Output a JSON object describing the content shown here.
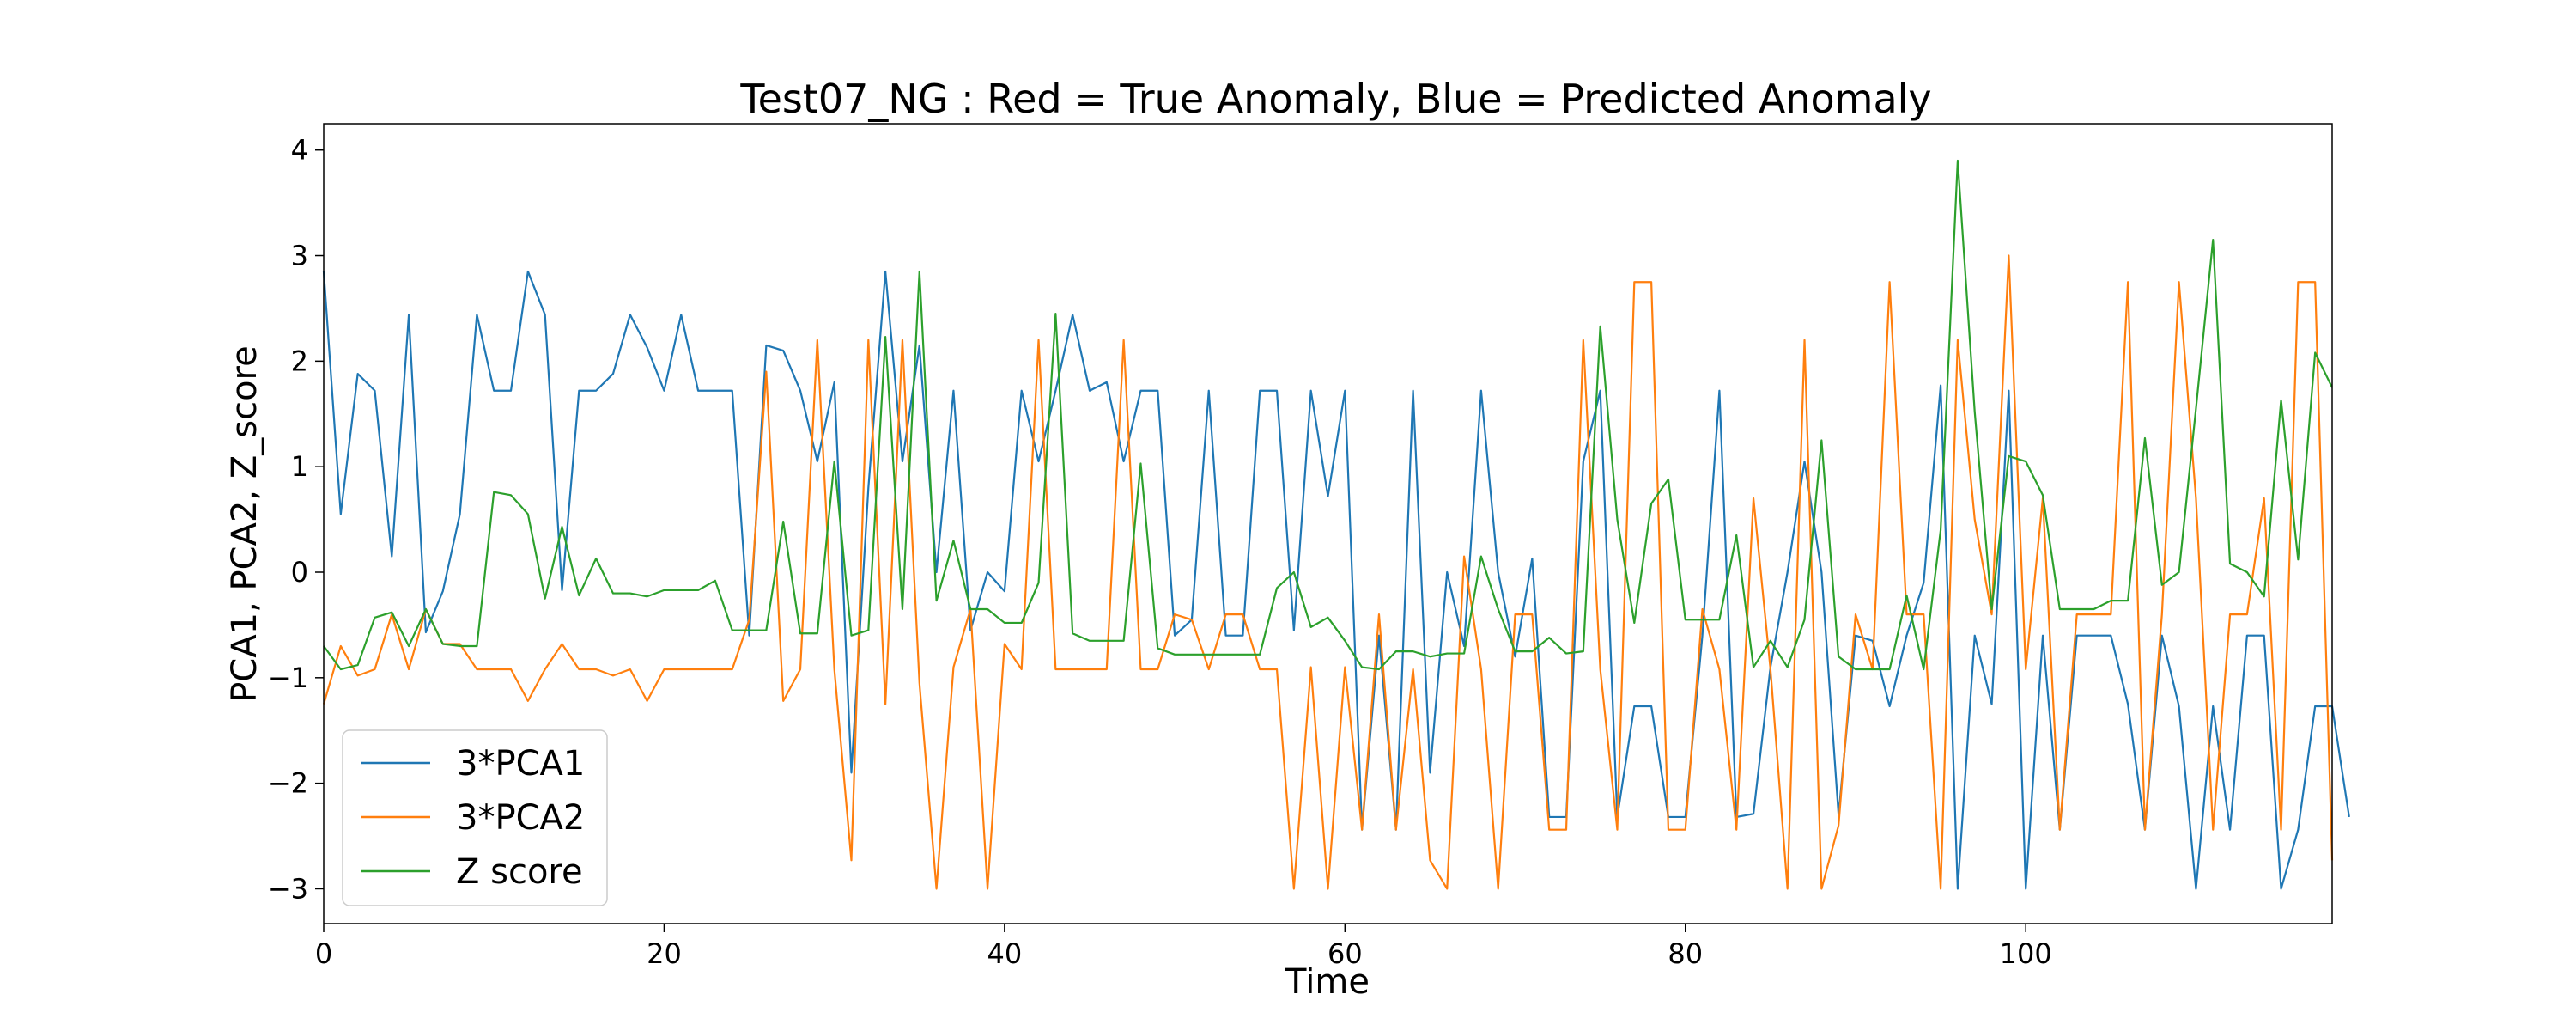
{
  "chart_data": {
    "type": "line",
    "title": "Test07_NG : Red = True Anomaly, Blue = Predicted Anomaly",
    "xlabel": "Time",
    "ylabel": "PCA1, PCA2, Z_score",
    "xlim": [
      0,
      118
    ],
    "ylim": [
      -3.33,
      4.25
    ],
    "xticks": [
      0,
      20,
      40,
      60,
      80,
      100
    ],
    "yticks": [
      -3,
      -2,
      -1,
      0,
      1,
      2,
      3,
      4
    ],
    "grid": false,
    "legend_position": "lower-left",
    "series": [
      {
        "name": "3*PCA1",
        "color": "#1f77b4",
        "values": [
          2.85,
          0.55,
          1.88,
          1.72,
          0.15,
          2.44,
          -0.57,
          -0.18,
          0.55,
          2.44,
          1.72,
          1.72,
          2.85,
          2.44,
          -0.17,
          1.72,
          1.72,
          1.88,
          2.44,
          2.13,
          1.72,
          2.44,
          1.72,
          1.72,
          1.72,
          -0.6,
          2.15,
          2.1,
          1.72,
          1.05,
          1.8,
          -1.9,
          0.8,
          2.85,
          1.05,
          2.15,
          0.0,
          1.72,
          -0.55,
          0.0,
          -0.18,
          1.72,
          1.05,
          1.72,
          2.44,
          1.72,
          1.8,
          1.05,
          1.72,
          1.72,
          -0.6,
          -0.45,
          1.72,
          -0.6,
          -0.6,
          1.72,
          1.72,
          -0.55,
          1.72,
          0.72,
          1.72,
          -2.44,
          -0.6,
          -2.44,
          1.72,
          -1.9,
          0.0,
          -0.7,
          1.72,
          0.0,
          -0.8,
          0.13,
          -2.32,
          -2.32,
          1.05,
          1.72,
          -2.32,
          -1.27,
          -1.27,
          -2.32,
          -2.32,
          -0.6,
          1.72,
          -2.32,
          -2.29,
          -0.9,
          0.0,
          1.05,
          0.0,
          -2.3,
          -0.6,
          -0.65,
          -1.27,
          -0.6,
          -0.1,
          1.77,
          -3.0,
          -0.6,
          -1.25,
          1.72,
          -3.0,
          -0.6,
          -2.44,
          -0.6,
          -0.6,
          -0.6,
          -1.25,
          -2.44,
          -0.6,
          -1.27,
          -3.0,
          -1.27,
          -2.44,
          -0.6,
          -0.6,
          -3.0,
          -2.44,
          -1.27,
          -1.27,
          -2.32
        ]
      },
      {
        "name": "3*PCA2",
        "color": "#ff7f0e",
        "values": [
          -1.25,
          -0.7,
          -0.98,
          -0.92,
          -0.4,
          -0.92,
          -0.35,
          -0.68,
          -0.68,
          -0.92,
          -0.92,
          -0.92,
          -1.22,
          -0.92,
          -0.68,
          -0.92,
          -0.92,
          -0.98,
          -0.92,
          -1.22,
          -0.92,
          -0.92,
          -0.92,
          -0.92,
          -0.92,
          -0.45,
          1.9,
          -1.22,
          -0.92,
          2.2,
          -0.92,
          -2.73,
          2.2,
          -1.25,
          2.2,
          -1.05,
          -3.0,
          -0.9,
          -0.35,
          -3.0,
          -0.68,
          -0.92,
          2.2,
          -0.92,
          -0.92,
          -0.92,
          -0.92,
          2.2,
          -0.92,
          -0.92,
          -0.4,
          -0.45,
          -0.92,
          -0.4,
          -0.4,
          -0.92,
          -0.92,
          -3.0,
          -0.9,
          -3.0,
          -0.9,
          -2.44,
          -0.4,
          -2.44,
          -0.92,
          -2.73,
          -3.0,
          0.15,
          -0.92,
          -3.0,
          -0.4,
          -0.4,
          -2.44,
          -2.44,
          2.2,
          -0.92,
          -2.44,
          2.75,
          2.75,
          -2.44,
          -2.44,
          -0.35,
          -0.92,
          -2.44,
          0.7,
          -0.92,
          -3.0,
          2.2,
          -3.0,
          -2.4,
          -0.4,
          -0.92,
          2.75,
          -0.4,
          -0.4,
          -3.0,
          2.2,
          0.5,
          -0.4,
          3.0,
          -0.92,
          0.7,
          -2.44,
          -0.4,
          -0.4,
          -0.4,
          2.75,
          -2.44,
          -0.4,
          2.75,
          0.7,
          -2.44,
          -0.4,
          -0.4,
          0.7,
          -2.44,
          2.75,
          2.75,
          -2.73
        ]
      },
      {
        "name": "Z score",
        "color": "#2ca02c",
        "values": [
          -0.7,
          -0.92,
          -0.88,
          -0.43,
          -0.38,
          -0.7,
          -0.35,
          -0.68,
          -0.7,
          -0.7,
          0.76,
          0.73,
          0.55,
          -0.25,
          0.43,
          -0.22,
          0.13,
          -0.2,
          -0.2,
          -0.23,
          -0.17,
          -0.17,
          -0.17,
          -0.08,
          -0.55,
          -0.55,
          -0.55,
          0.48,
          -0.58,
          -0.58,
          1.05,
          -0.6,
          -0.55,
          2.23,
          -0.35,
          2.85,
          -0.27,
          0.3,
          -0.35,
          -0.35,
          -0.48,
          -0.48,
          -0.1,
          2.45,
          -0.58,
          -0.65,
          -0.65,
          -0.65,
          1.03,
          -0.72,
          -0.78,
          -0.78,
          -0.78,
          -0.78,
          -0.78,
          -0.78,
          -0.15,
          0.0,
          -0.52,
          -0.43,
          -0.65,
          -0.9,
          -0.92,
          -0.75,
          -0.75,
          -0.8,
          -0.77,
          -0.77,
          0.15,
          -0.35,
          -0.75,
          -0.75,
          -0.62,
          -0.77,
          -0.75,
          2.33,
          0.5,
          -0.48,
          0.65,
          0.88,
          -0.45,
          -0.45,
          -0.45,
          0.35,
          -0.9,
          -0.65,
          -0.9,
          -0.45,
          1.25,
          -0.8,
          -0.92,
          -0.92,
          -0.92,
          -0.22,
          -0.92,
          0.4,
          3.9,
          1.52,
          -0.35,
          1.1,
          1.05,
          0.73,
          -0.35,
          -0.35,
          -0.35,
          -0.27,
          -0.27,
          1.27,
          -0.12,
          0.0,
          1.55,
          3.15,
          0.08,
          0.0,
          -0.23,
          1.63,
          0.12,
          2.08,
          1.75
        ]
      }
    ]
  }
}
